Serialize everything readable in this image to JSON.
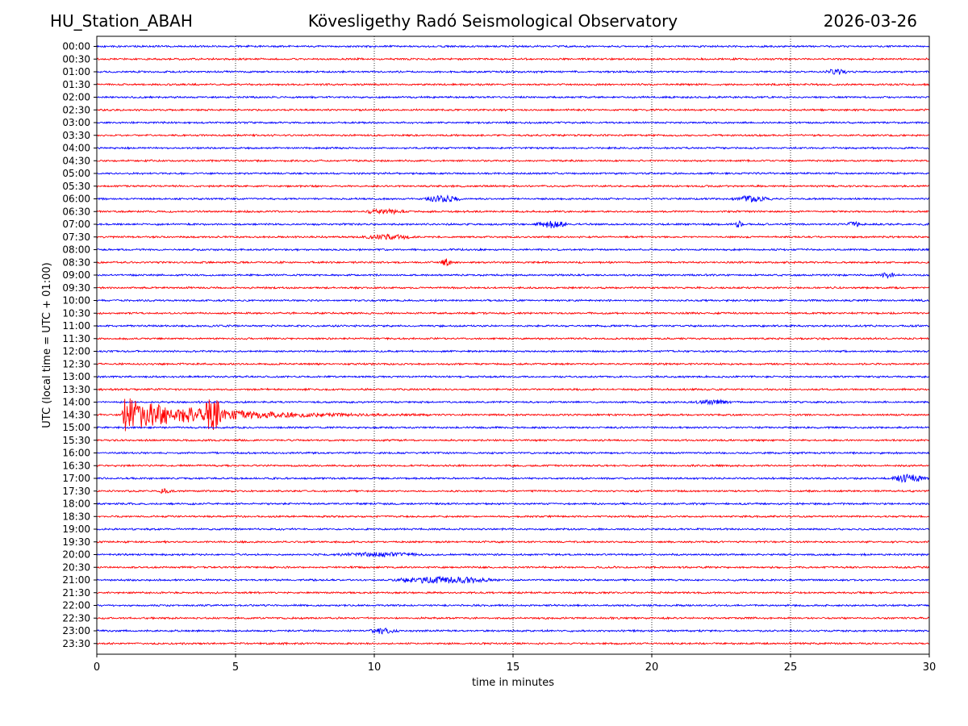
{
  "header": {
    "station": "HU_Station_ABAH",
    "observatory": "Kövesligethy Radó Seismological Observatory",
    "date": "2026-03-26"
  },
  "chart_data": {
    "type": "line",
    "title": "Kövesligethy Radó Seismological Observatory",
    "xlabel": "time in minutes",
    "ylabel": "UTC (local time = UTC + 01:00)",
    "xlim": [
      0,
      30
    ],
    "xticks": [
      0,
      5,
      10,
      15,
      20,
      25,
      30
    ],
    "grid": "vertical dotted lines at 5-minute ticks",
    "row_labels": [
      "00:00",
      "00:30",
      "01:00",
      "01:30",
      "02:00",
      "02:30",
      "03:00",
      "03:30",
      "04:00",
      "04:30",
      "05:00",
      "05:30",
      "06:00",
      "06:30",
      "07:00",
      "07:30",
      "08:00",
      "08:30",
      "09:00",
      "09:30",
      "10:00",
      "10:30",
      "11:00",
      "11:30",
      "12:00",
      "12:30",
      "13:00",
      "13:30",
      "14:00",
      "14:30",
      "15:00",
      "15:30",
      "16:00",
      "16:30",
      "17:00",
      "17:30",
      "18:00",
      "18:30",
      "19:00",
      "19:30",
      "20:00",
      "20:30",
      "21:00",
      "21:30",
      "22:00",
      "22:30",
      "23:00",
      "23:30"
    ],
    "series_colors": [
      "#0000ff",
      "#ff0000"
    ],
    "base_noise": 1.0,
    "events": [
      {
        "row": "01:00",
        "start_min": 26.2,
        "end_min": 27.2,
        "amplitude": 2.5
      },
      {
        "row": "06:00",
        "start_min": 11.8,
        "end_min": 13.2,
        "amplitude": 3.5
      },
      {
        "row": "06:00",
        "start_min": 22.8,
        "end_min": 24.4,
        "amplitude": 3.0
      },
      {
        "row": "06:30",
        "start_min": 9.6,
        "end_min": 11.2,
        "amplitude": 2.5
      },
      {
        "row": "07:00",
        "start_min": 15.8,
        "end_min": 17.0,
        "amplitude": 4.0
      },
      {
        "row": "07:00",
        "start_min": 23.0,
        "end_min": 23.3,
        "amplitude": 4.0
      },
      {
        "row": "07:00",
        "start_min": 27.0,
        "end_min": 27.6,
        "amplitude": 2.5
      },
      {
        "row": "07:30",
        "start_min": 9.5,
        "end_min": 11.5,
        "amplitude": 2.5
      },
      {
        "row": "08:30",
        "start_min": 12.4,
        "end_min": 12.8,
        "amplitude": 4.0
      },
      {
        "row": "09:00",
        "start_min": 28.2,
        "end_min": 28.8,
        "amplitude": 3.0
      },
      {
        "row": "14:30",
        "start_min": 0.9,
        "end_min": 12.0,
        "amplitude": 22.0,
        "decay": "exponential"
      },
      {
        "row": "14:30",
        "start_min": 3.8,
        "end_min": 4.6,
        "amplitude": 14.0
      },
      {
        "row": "14:00",
        "start_min": 21.5,
        "end_min": 23.0,
        "amplitude": 2.0
      },
      {
        "row": "17:00",
        "start_min": 28.5,
        "end_min": 30.0,
        "amplitude": 4.0
      },
      {
        "row": "17:30",
        "start_min": 2.2,
        "end_min": 2.8,
        "amplitude": 2.5
      },
      {
        "row": "20:00",
        "start_min": 8.5,
        "end_min": 12.0,
        "amplitude": 2.0
      },
      {
        "row": "21:00",
        "start_min": 10.5,
        "end_min": 14.5,
        "amplitude": 3.5
      },
      {
        "row": "23:00",
        "start_min": 9.8,
        "end_min": 10.9,
        "amplitude": 3.0
      }
    ]
  }
}
